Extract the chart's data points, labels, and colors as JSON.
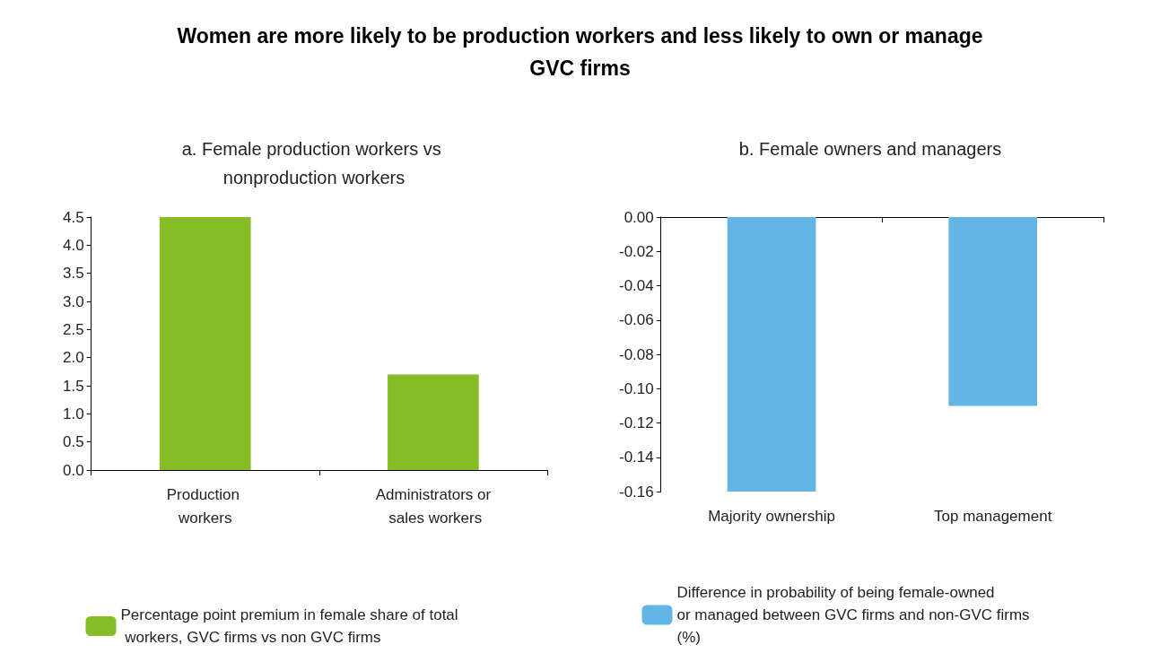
{
  "chart_data": [
    {
      "type": "bar",
      "title": "Women are more likely to be production workers and less likely to own or manage GVC firms",
      "subtitle": "a. Female production workers vs nonproduction workers",
      "categories": [
        "Production workers",
        "Administrators or sales workers"
      ],
      "series": [
        {
          "name": "Percentage point premium in female share of total workers, GVC firms vs non GVC firms",
          "color": "#86bc25",
          "values": [
            4.5,
            1.7
          ]
        }
      ],
      "ylim": [
        0,
        4.5
      ],
      "yticks": [
        {
          "value": 0,
          "label": "0.0"
        },
        {
          "value": 0.5,
          "label": "0.5"
        },
        {
          "value": 1,
          "label": "1.0"
        },
        {
          "value": 1.5,
          "label": "1.5"
        },
        {
          "value": 2,
          "label": "2.0"
        },
        {
          "value": 2.5,
          "label": "2.5"
        },
        {
          "value": 3,
          "label": "3.0"
        },
        {
          "value": 3.5,
          "label": "3.5"
        },
        {
          "value": 4,
          "label": "4.0"
        },
        {
          "value": 4.5,
          "label": "4.5"
        }
      ],
      "grid": false,
      "legend": "bottom"
    },
    {
      "type": "bar",
      "subtitle": "b. Female owners and managers",
      "categories": [
        "Majority ownership",
        "Top management"
      ],
      "series": [
        {
          "name": "Difference in probability of being female-owned or managed between GVC firms and non-GVC firms (%)",
          "color": "#62b5e5",
          "values": [
            -0.16,
            -0.11
          ]
        }
      ],
      "ylim": [
        -0.16,
        0
      ],
      "yticks": [
        {
          "value": 0,
          "label": "0.00"
        },
        {
          "value": -0.02,
          "label": "-0.02"
        },
        {
          "value": -0.04,
          "label": "-0.04"
        },
        {
          "value": -0.06,
          "label": "-0.06"
        },
        {
          "value": -0.08,
          "label": "-0.08"
        },
        {
          "value": -0.1,
          "label": "-0.10"
        },
        {
          "value": -0.12,
          "label": "-0.12"
        },
        {
          "value": -0.14,
          "label": "-0.14"
        },
        {
          "value": -0.16,
          "label": "-0.16"
        }
      ],
      "grid": false,
      "legend": "bottom"
    }
  ]
}
